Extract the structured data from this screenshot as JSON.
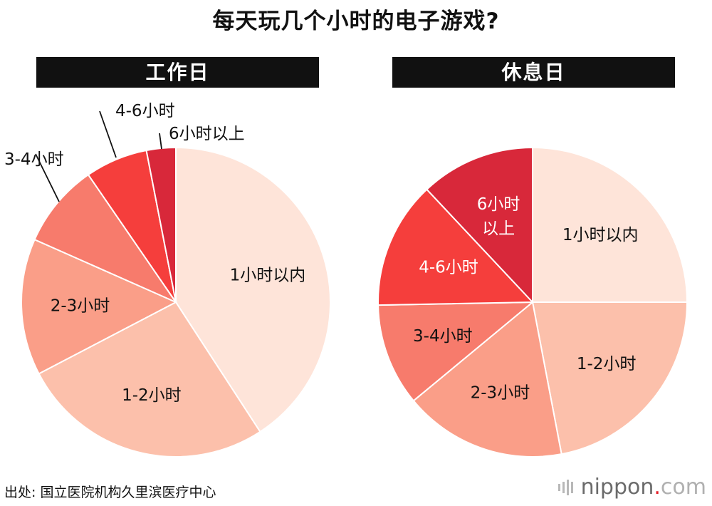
{
  "title": "每天玩几个小时的电子游戏?",
  "source": "出处: 国立医院机构久里滨医疗中心",
  "brand": {
    "name": "nippon",
    "dot": ".",
    "tld": "com"
  },
  "chart_data": [
    {
      "type": "pie",
      "title": "工作日",
      "start_angle_deg": 0,
      "direction": "clockwise",
      "slices": [
        {
          "label": "1小时以内",
          "value": 40.0,
          "color": "#FEE4D9"
        },
        {
          "label": "1-2小时",
          "value": 26.0,
          "color": "#FCC0AB"
        },
        {
          "label": "2-3小时",
          "value": 14.0,
          "color": "#FA9E88"
        },
        {
          "label": "3-4小时",
          "value": 8.6,
          "color": "#F77B6C"
        },
        {
          "label": "4-6小时",
          "value": 6.4,
          "color": "#F53E3C"
        },
        {
          "label": "6小时以上",
          "value": 3.0,
          "color": "#D8283A"
        }
      ]
    },
    {
      "type": "pie",
      "title": "休息日",
      "start_angle_deg": 0,
      "direction": "clockwise",
      "slices": [
        {
          "label": "1小时以内",
          "value": 25.0,
          "color": "#FEE4D9"
        },
        {
          "label": "1-2小时",
          "value": 22.0,
          "color": "#FCC0AB"
        },
        {
          "label": "2-3小时",
          "value": 17.0,
          "color": "#FA9E88"
        },
        {
          "label": "3-4小时",
          "value": 10.7,
          "color": "#F77B6C"
        },
        {
          "label": "4-6小时",
          "value": 13.3,
          "color": "#F53E3C"
        },
        {
          "label": "6小时以上",
          "value": 12.0,
          "color": "#D8283A",
          "display_lines": [
            "6小时",
            "以上"
          ]
        }
      ]
    }
  ]
}
